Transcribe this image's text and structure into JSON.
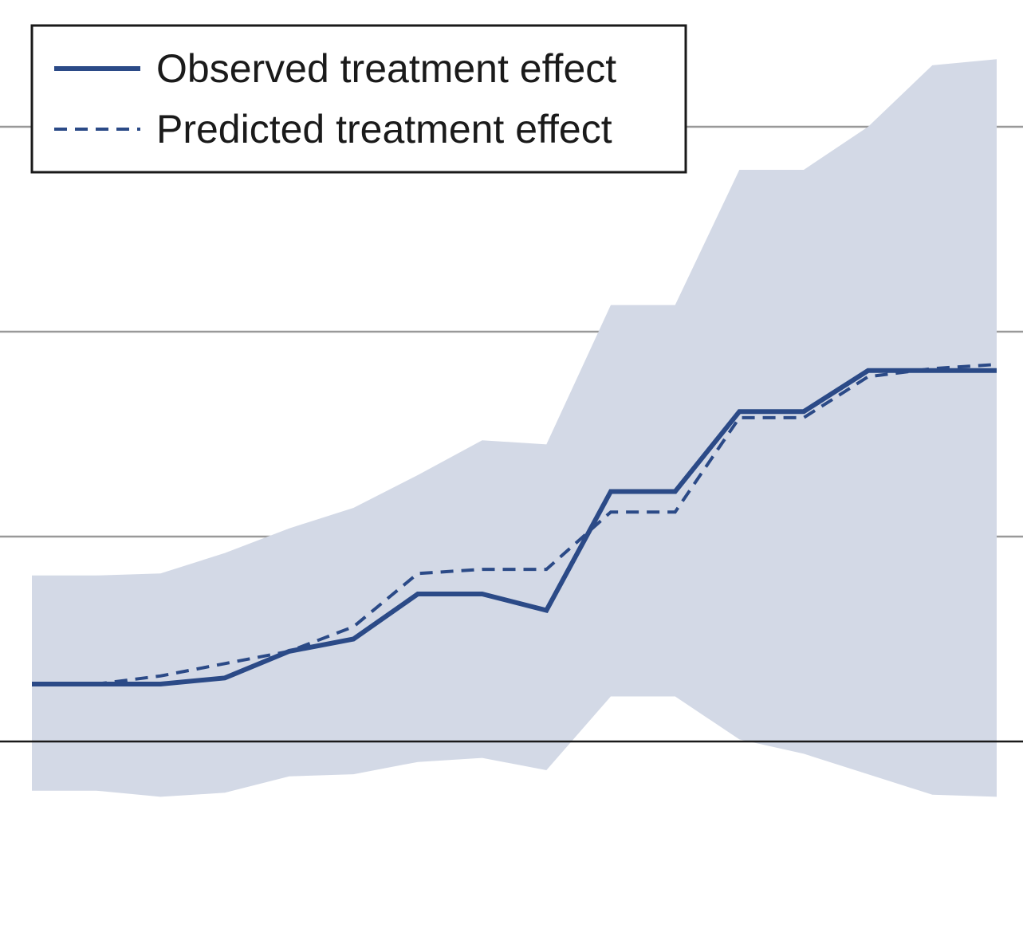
{
  "chart_data": {
    "type": "line",
    "title": "",
    "xlabel": "",
    "ylabel": "",
    "x": [
      0,
      1,
      2,
      3,
      4,
      5,
      6,
      7,
      8,
      9,
      10,
      11,
      12,
      13,
      14,
      15
    ],
    "xlim": [
      0,
      15
    ],
    "ylim": [
      -0.5,
      3.0
    ],
    "grid_lines_y": [
      1,
      2,
      3
    ],
    "zero_line_y": 0,
    "band": {
      "upper": [
        0.81,
        0.81,
        0.82,
        0.92,
        1.04,
        1.14,
        1.3,
        1.47,
        1.45,
        2.13,
        2.13,
        2.79,
        2.79,
        3.0,
        3.3,
        3.33
      ],
      "lower": [
        -0.24,
        -0.24,
        -0.27,
        -0.25,
        -0.17,
        -0.16,
        -0.1,
        -0.08,
        -0.14,
        0.22,
        0.22,
        0.01,
        -0.06,
        -0.16,
        -0.26,
        -0.27
      ]
    },
    "series": [
      {
        "name": "Observed treatment effect",
        "style": "solid",
        "color": "#2b4a87",
        "values": [
          0.28,
          0.28,
          0.28,
          0.31,
          0.44,
          0.5,
          0.72,
          0.72,
          0.64,
          1.22,
          1.22,
          1.61,
          1.61,
          1.81,
          1.81,
          1.81
        ]
      },
      {
        "name": "Predicted treatment effect",
        "style": "dashed",
        "color": "#2b4a87",
        "values": [
          0.28,
          0.28,
          0.32,
          0.38,
          0.44,
          0.56,
          0.82,
          0.84,
          0.84,
          1.12,
          1.12,
          1.58,
          1.58,
          1.78,
          1.82,
          1.84
        ]
      }
    ],
    "legend_position": "top-left",
    "band_color": "#d3d9e6",
    "grid_color": "#999999",
    "zero_line_color": "#1a1a1a"
  }
}
